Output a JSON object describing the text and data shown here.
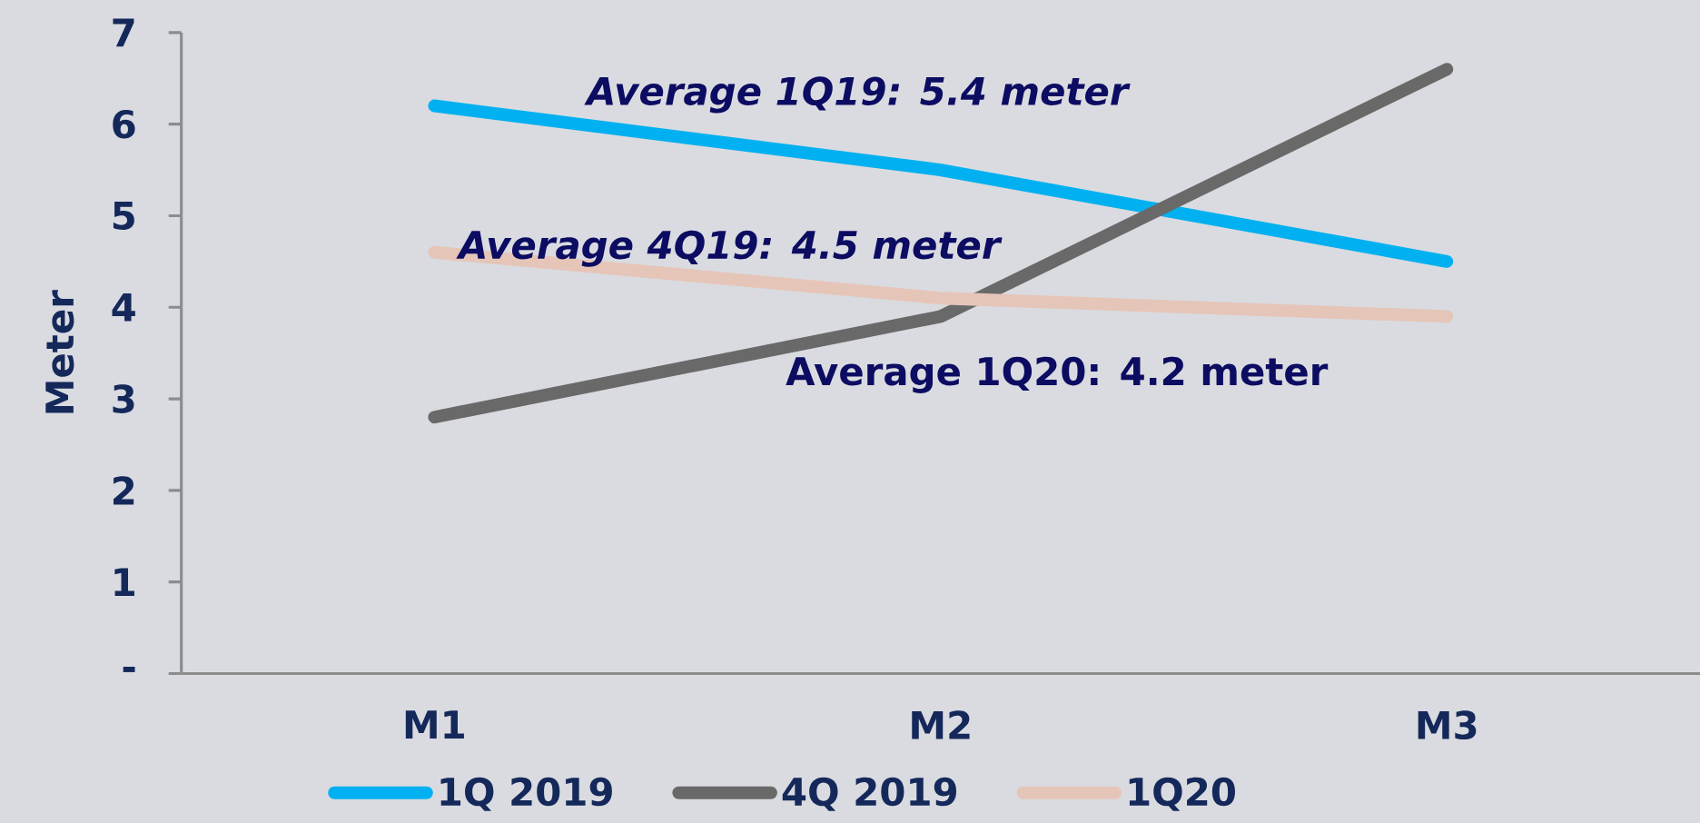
{
  "chart_data": {
    "type": "line",
    "categories": [
      "M1",
      "M2",
      "M3"
    ],
    "series": [
      {
        "name": "1Q 2019",
        "color": "#00b0f0",
        "values": [
          6.2,
          5.5,
          4.5
        ]
      },
      {
        "name": "4Q 2019",
        "color": "#696969",
        "values": [
          2.8,
          3.9,
          6.6
        ]
      },
      {
        "name": "1Q20",
        "color": "#e6c5b9",
        "values": [
          4.6,
          4.1,
          3.9
        ]
      }
    ],
    "ylabel": "Meter",
    "ylim": [
      0,
      7
    ],
    "yticks": [
      {
        "value": 0,
        "label": "-"
      },
      1,
      2,
      3,
      4,
      5,
      6,
      7
    ],
    "annotations": [
      "Average 1Q19: 5.4 meter",
      "Average 4Q19: 4.5 meter",
      "Average 1Q20: 4.2 meter"
    ],
    "legend": "bottom"
  }
}
